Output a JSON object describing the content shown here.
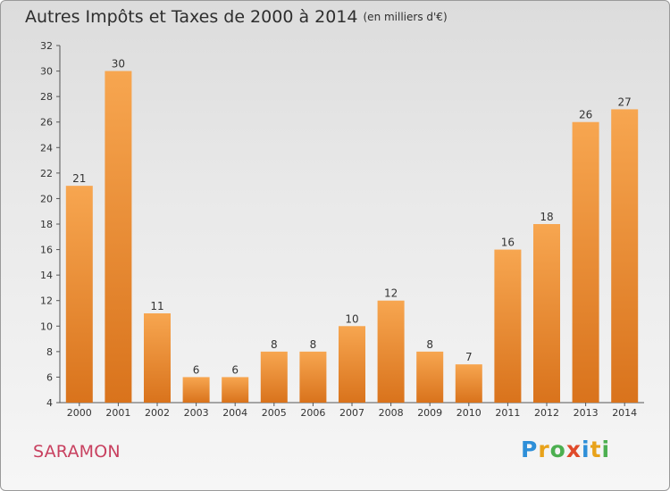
{
  "chart_data": {
    "type": "bar",
    "title": "Autres Impôts et Taxes de 2000 à 2014",
    "subtitle": "(en milliers d'€)",
    "categories": [
      "2000",
      "2001",
      "2002",
      "2003",
      "2004",
      "2005",
      "2006",
      "2007",
      "2008",
      "2009",
      "2010",
      "2011",
      "2012",
      "2013",
      "2014"
    ],
    "values": [
      21,
      30,
      11,
      6,
      6,
      8,
      8,
      10,
      12,
      8,
      7,
      16,
      18,
      26,
      27
    ],
    "ylim": [
      4,
      32
    ],
    "yticks": [
      4,
      6,
      8,
      10,
      12,
      14,
      16,
      18,
      20,
      22,
      24,
      26,
      28,
      30,
      32
    ],
    "grid": false,
    "bar_color": "#f29a3c",
    "xlabel": "",
    "ylabel": ""
  },
  "footer": {
    "town": "SARAMON",
    "brand": "Proxiti",
    "brand_letters": [
      {
        "ch": "P",
        "color": "#2e8fd8"
      },
      {
        "ch": "r",
        "color": "#e8a21a"
      },
      {
        "ch": "o",
        "color": "#4caf50"
      },
      {
        "ch": "x",
        "color": "#e04a2a"
      },
      {
        "ch": "i",
        "color": "#2e8fd8"
      },
      {
        "ch": "t",
        "color": "#e8a21a"
      },
      {
        "ch": "i",
        "color": "#4caf50"
      }
    ]
  }
}
